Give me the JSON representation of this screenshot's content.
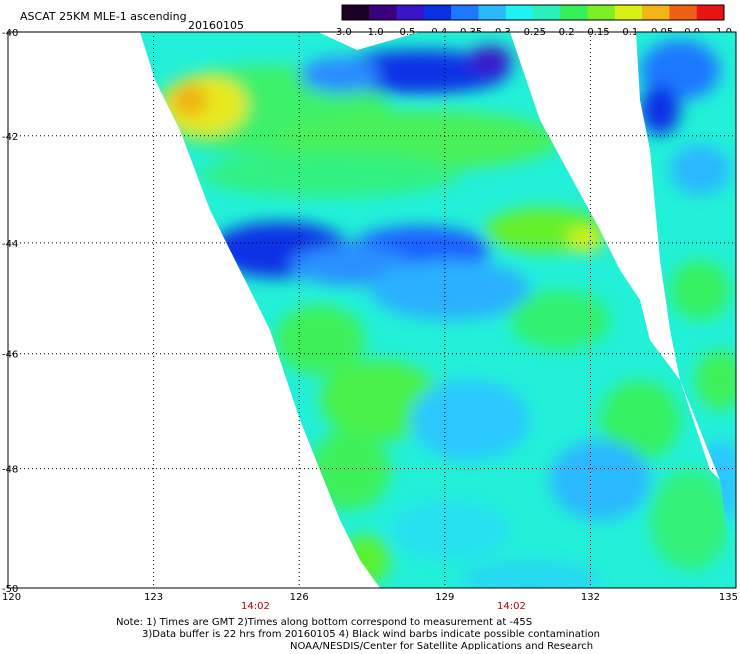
{
  "header": {
    "title": "ASCAT 25KM MLE-1 ascending",
    "date": "20160105"
  },
  "colorbar": {
    "tick_labels": [
      "-3.0",
      "-1.0",
      "-0.5",
      "-0.4",
      "-0.35",
      "-0.3",
      "-0.25",
      "-0.2",
      "-0.15",
      "-0.1",
      "-0.05",
      "0.0",
      "1.0"
    ],
    "colors": [
      "#1a0022",
      "#3a0080",
      "#3a14c8",
      "#0a30e6",
      "#1e78ff",
      "#2ab8ff",
      "#1ef2f2",
      "#28f0b8",
      "#36f05a",
      "#7af024",
      "#d8f014",
      "#f0b414",
      "#f06014",
      "#e81414"
    ]
  },
  "axes": {
    "lat_labels": [
      "-40",
      "-42",
      "-44",
      "-46",
      "-48",
      "-50"
    ],
    "lon_labels": [
      "120",
      "123",
      "126",
      "129",
      "132",
      "135"
    ],
    "lat_range": [
      -50,
      -40
    ],
    "lon_range": [
      120,
      135
    ]
  },
  "time_labels": [
    "14:02",
    "14:02"
  ],
  "notes": {
    "line1": "Note: 1) Times are GMT 2)Times along bottom correspond to measurement at -45S",
    "line2": "3)Data buffer is 22 hrs from 20160105 4) Black wind barbs indicate possible contamination",
    "line3": "NOAA/NESDIS/Center for Satellite Applications and Research"
  }
}
